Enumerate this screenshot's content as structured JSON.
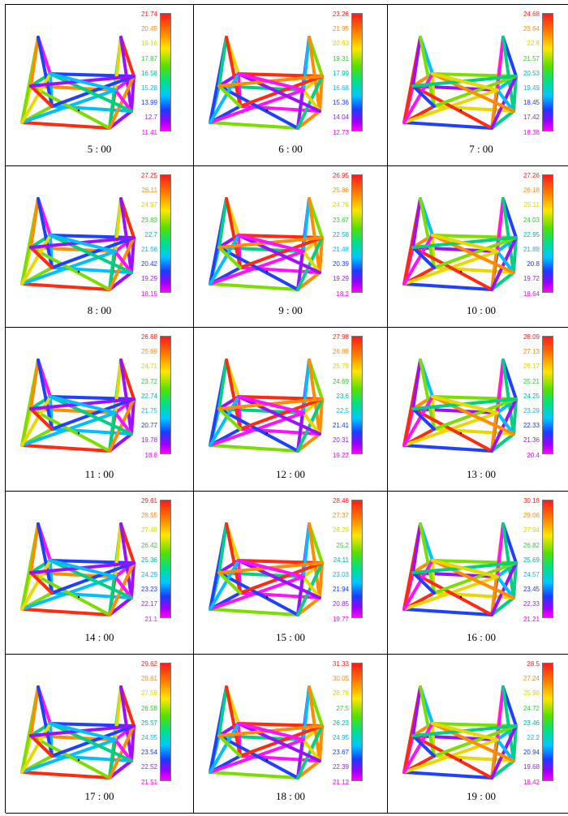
{
  "panels": [
    {
      "time": "5 : 00",
      "ticks": [
        "21.74",
        "20.45",
        "19.16",
        "17.87",
        "16.58",
        "15.28",
        "13.99",
        "12.7",
        "11.41"
      ]
    },
    {
      "time": "6 : 00",
      "ticks": [
        "23.26",
        "21.95",
        "20.63",
        "19.31",
        "17.99",
        "16.68",
        "15.36",
        "14.04",
        "12.73"
      ]
    },
    {
      "time": "7 : 00",
      "ticks": [
        "24.68",
        "23.64",
        "22.6",
        "21.57",
        "20.53",
        "19.49",
        "18.45",
        "17.42",
        "16.38"
      ]
    },
    {
      "time": "8 : 00",
      "ticks": [
        "27.25",
        "26.11",
        "24.97",
        "23.83",
        "22.7",
        "21.56",
        "20.42",
        "19.29",
        "18.15"
      ]
    },
    {
      "time": "9 : 00",
      "ticks": [
        "26.95",
        "25.86",
        "24.76",
        "23.67",
        "22.58",
        "21.48",
        "20.39",
        "19.29",
        "18.2"
      ]
    },
    {
      "time": "10 : 00",
      "ticks": [
        "27.26",
        "26.18",
        "25.11",
        "24.03",
        "22.95",
        "21.88",
        "20.8",
        "19.72",
        "18.64"
      ]
    },
    {
      "time": "11 : 00",
      "ticks": [
        "26.68",
        "25.69",
        "24.71",
        "23.72",
        "22.74",
        "21.75",
        "20.77",
        "19.78",
        "18.8"
      ]
    },
    {
      "time": "12 : 00",
      "ticks": [
        "27.98",
        "26.88",
        "25.79",
        "24.69",
        "23.6",
        "22.5",
        "21.41",
        "20.31",
        "19.22"
      ]
    },
    {
      "time": "13 : 00",
      "ticks": [
        "28.09",
        "27.13",
        "26.17",
        "25.21",
        "24.25",
        "23.29",
        "22.33",
        "21.36",
        "20.4"
      ]
    },
    {
      "time": "14 : 00",
      "ticks": [
        "29.61",
        "28.55",
        "27.48",
        "26.42",
        "25.36",
        "24.29",
        "23.23",
        "22.17",
        "21.1"
      ]
    },
    {
      "time": "15 : 00",
      "ticks": [
        "28.46",
        "27.37",
        "26.29",
        "25.2",
        "24.11",
        "23.03",
        "21.94",
        "20.85",
        "19.77"
      ]
    },
    {
      "time": "16 : 00",
      "ticks": [
        "30.18",
        "29.06",
        "27.94",
        "26.82",
        "25.69",
        "24.57",
        "23.45",
        "22.33",
        "21.21"
      ]
    },
    {
      "time": "17 : 00",
      "ticks": [
        "29.62",
        "28.61",
        "27.59",
        "26.58",
        "25.57",
        "24.55",
        "23.54",
        "22.52",
        "21.51"
      ]
    },
    {
      "time": "18 : 00",
      "ticks": [
        "31.33",
        "30.05",
        "28.78",
        "27.5",
        "26.23",
        "24.95",
        "23.67",
        "22.39",
        "21.12"
      ]
    },
    {
      "time": "19 : 00",
      "ticks": [
        "28.5",
        "27.24",
        "25.98",
        "24.72",
        "23.46",
        "22.2",
        "20.94",
        "19.68",
        "18.42"
      ]
    }
  ],
  "tick_colors": [
    "#ff2020",
    "#ff8c1a",
    "#d8d800",
    "#3cc43c",
    "#00b8a0",
    "#1ab0ff",
    "#1a3cff",
    "#8a2be2",
    "#ff00ff"
  ],
  "member_palette": [
    "#ff2a10",
    "#ff8c00",
    "#e8d800",
    "#7adf00",
    "#00d080",
    "#00bfff",
    "#2040ff",
    "#9b10ff",
    "#ff10ff"
  ]
}
